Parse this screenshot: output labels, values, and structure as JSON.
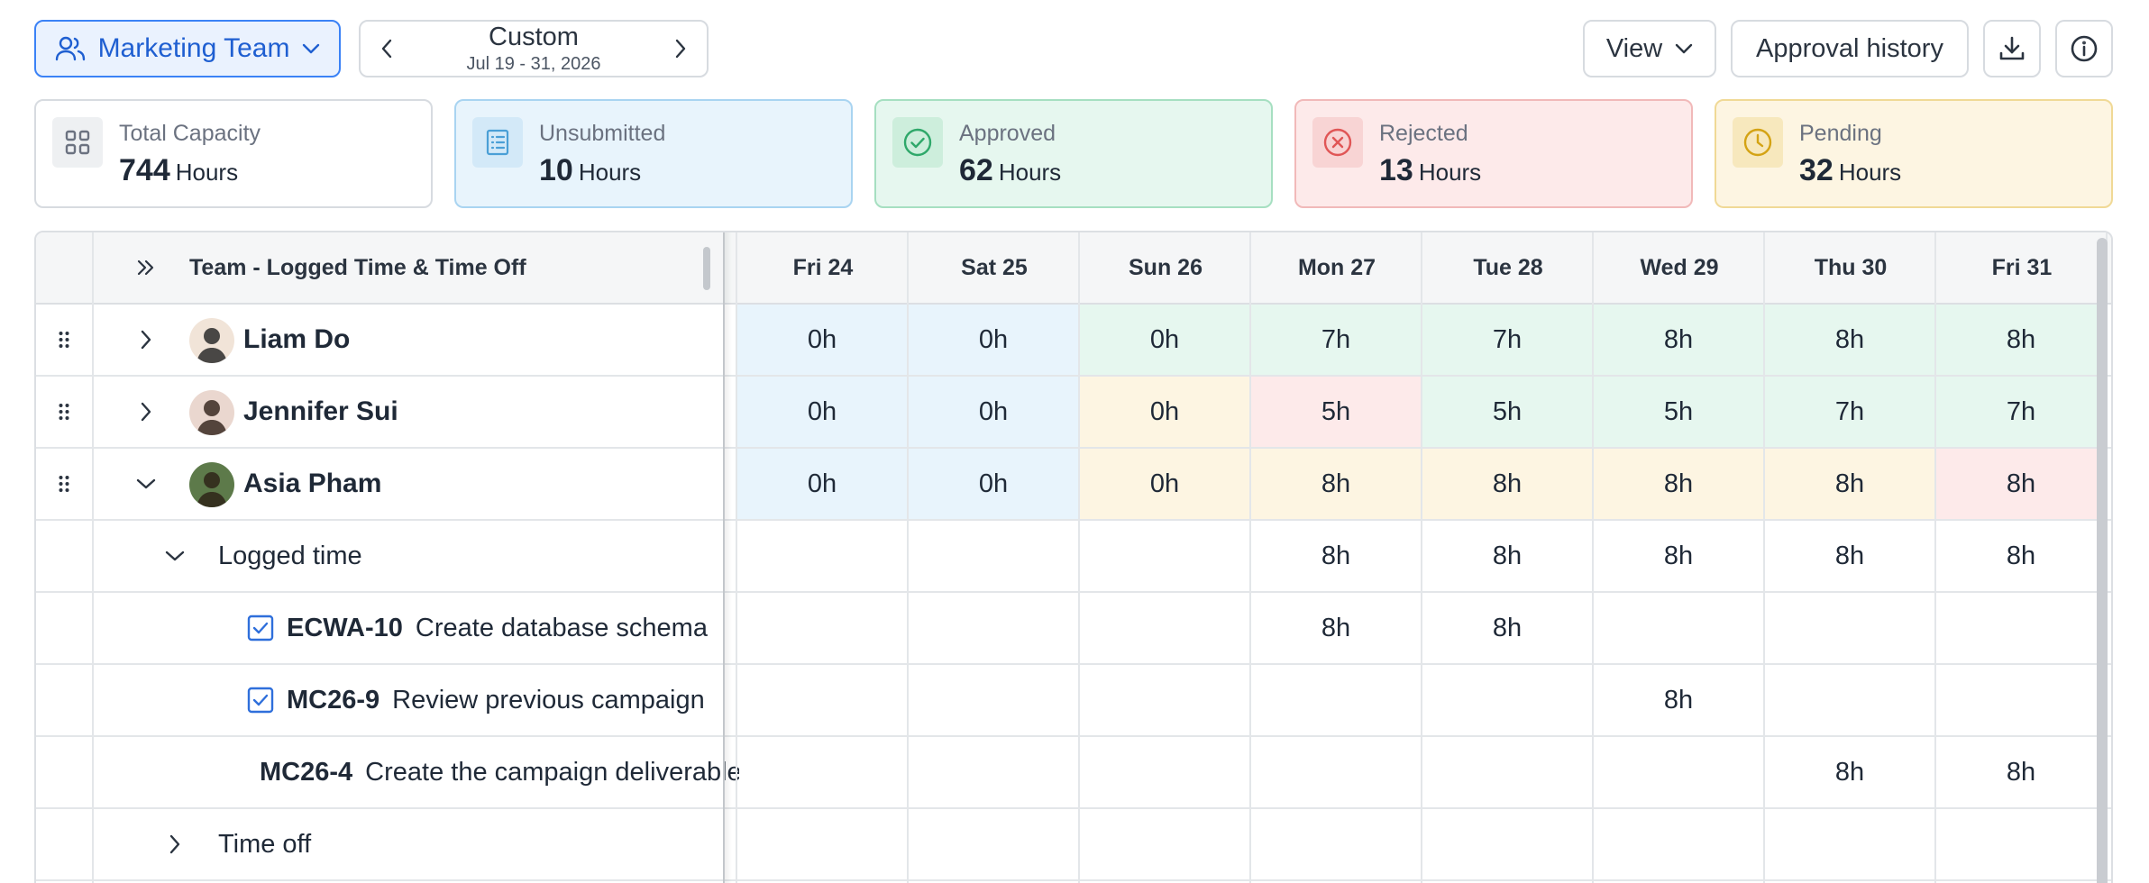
{
  "toolbar": {
    "team_label": "Marketing Team",
    "date_title": "Custom",
    "date_range": "Jul 19 - 31, 2026",
    "view_label": "View",
    "history_label": "Approval history"
  },
  "cards": [
    {
      "label": "Total Capacity",
      "value": "744",
      "unit": "Hours",
      "icon": "grid-icon"
    },
    {
      "label": "Unsubmitted",
      "value": "10",
      "unit": "Hours",
      "icon": "list-icon"
    },
    {
      "label": "Approved",
      "value": "62",
      "unit": "Hours",
      "icon": "check-circle-icon"
    },
    {
      "label": "Rejected",
      "value": "13",
      "unit": "Hours",
      "icon": "x-circle-icon"
    },
    {
      "label": "Pending",
      "value": "32",
      "unit": "Hours",
      "icon": "clock-icon"
    }
  ],
  "colors": {
    "unsubmitted": "#e8f4fc",
    "approved": "#e6f7ef",
    "rejected": "#fdeaea",
    "pending": "#fdf5e2",
    "accent": "#3b82f6"
  },
  "grid": {
    "column_title": "Team - Logged Time & Time Off",
    "days": [
      "Fri 24",
      "Sat 25",
      "Sun 26",
      "Mon 27",
      "Tue 28",
      "Wed 29",
      "Thu 30",
      "Fri 31"
    ],
    "people": [
      {
        "name": "Liam Do",
        "hours": [
          "0h",
          "0h",
          "0h",
          "7h",
          "7h",
          "8h",
          "8h",
          "8h"
        ],
        "status": [
          "unsubmitted",
          "unsubmitted",
          "approved",
          "approved",
          "approved",
          "approved",
          "approved",
          "approved"
        ]
      },
      {
        "name": "Jennifer Sui",
        "hours": [
          "0h",
          "0h",
          "0h",
          "5h",
          "5h",
          "5h",
          "7h",
          "7h"
        ],
        "status": [
          "unsubmitted",
          "unsubmitted",
          "pending",
          "rejected",
          "approved",
          "approved",
          "approved",
          "approved"
        ]
      },
      {
        "name": "Asia Pham",
        "hours": [
          "0h",
          "0h",
          "0h",
          "8h",
          "8h",
          "8h",
          "8h",
          "8h"
        ],
        "status": [
          "unsubmitted",
          "unsubmitted",
          "pending",
          "pending",
          "pending",
          "pending",
          "pending",
          "rejected"
        ]
      }
    ],
    "logged_time": {
      "label": "Logged time",
      "hours": [
        "",
        "",
        "",
        "8h",
        "8h",
        "8h",
        "8h",
        "8h"
      ]
    },
    "tasks": [
      {
        "key": "ECWA-10",
        "title": "Create database schema",
        "hours": [
          "",
          "",
          "",
          "8h",
          "8h",
          "",
          "",
          ""
        ]
      },
      {
        "key": "MC26-9",
        "title": "Review previous campaign",
        "hours": [
          "",
          "",
          "",
          "",
          "",
          "8h",
          "",
          ""
        ]
      },
      {
        "key": "MC26-4",
        "title": "Create the campaign deliverables",
        "hours": [
          "",
          "",
          "",
          "",
          "",
          "",
          "8h",
          "8h"
        ]
      }
    ],
    "time_off": {
      "label": "Time off"
    }
  }
}
